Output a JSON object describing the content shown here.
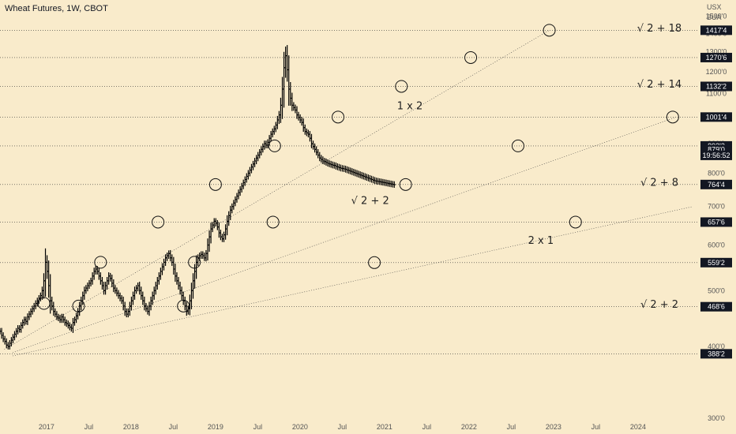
{
  "title": "Wheat Futures, 1W, CBOT",
  "currency": [
    "USX",
    "BUA"
  ],
  "countdown": "19:56:52",
  "chart_data": {
    "type": "line",
    "title": "Wheat Futures, 1W, CBOT",
    "xlabel": "",
    "ylabel": "",
    "xlim": [
      2016.45,
      2024.72
    ],
    "ylim": [
      300,
      1600
    ],
    "y_scale": "log",
    "y_ticks": [
      "300'0",
      "400'0",
      "500'0",
      "600'0",
      "700'0",
      "800'0",
      "900'0",
      "1000'0",
      "1100'0",
      "1200'0",
      "1300'0",
      "1400'0",
      "1500'0"
    ],
    "x_ticks": [
      {
        "t": 2017.0,
        "label": "2017"
      },
      {
        "t": 2017.5,
        "label": "Jul"
      },
      {
        "t": 2018.0,
        "label": "2018"
      },
      {
        "t": 2018.5,
        "label": "Jul"
      },
      {
        "t": 2019.0,
        "label": "2019"
      },
      {
        "t": 2019.5,
        "label": "Jul"
      },
      {
        "t": 2020.0,
        "label": "2020"
      },
      {
        "t": 2020.5,
        "label": "Jul"
      },
      {
        "t": 2021.0,
        "label": "2021"
      },
      {
        "t": 2021.5,
        "label": "Jul"
      },
      {
        "t": 2022.0,
        "label": "2022"
      },
      {
        "t": 2022.5,
        "label": "Jul"
      },
      {
        "t": 2023.0,
        "label": "2023"
      },
      {
        "t": 2023.5,
        "label": "Jul"
      },
      {
        "t": 2024.0,
        "label": "2024"
      }
    ],
    "levels": [
      {
        "value": 1417.5,
        "label": "1417'4"
      },
      {
        "value": 1270.75,
        "label": "1270'6"
      },
      {
        "value": 1132.25,
        "label": "1132'2"
      },
      {
        "value": 1001.5,
        "label": "1001'4"
      },
      {
        "value": 892.25,
        "label": "892'2"
      },
      {
        "value": 879,
        "label": "879'0"
      },
      {
        "value": 764.5,
        "label": "764'4"
      },
      {
        "value": 657.75,
        "label": "657'6"
      },
      {
        "value": 559.25,
        "label": "559'2"
      },
      {
        "value": 468.75,
        "label": "468'6"
      },
      {
        "value": 388.25,
        "label": "388'2"
      }
    ],
    "horizontal_lines": [
      1417.5,
      1270.75,
      1132.25,
      1001.5,
      892.25,
      764.5,
      657.75,
      559.25,
      468.75,
      388.25
    ],
    "trendlines": [
      {
        "name": "1 x 2",
        "from": [
          2016.5,
          395
        ],
        "to": [
          2022.95,
          1417.5
        ]
      },
      {
        "name": "√2 + 2 fan",
        "from": [
          2016.6,
          390
        ],
        "to": [
          2024.45,
          1001.5
        ]
      },
      {
        "name": "2 x 1",
        "from": [
          2016.6,
          385
        ],
        "to": [
          2024.65,
          700
        ]
      }
    ],
    "circles": [
      [
        2016.97,
        475
      ],
      [
        2017.64,
        560
      ],
      [
        2018.32,
        657.75
      ],
      [
        2019.0,
        764.5
      ],
      [
        2019.7,
        892.25
      ],
      [
        2020.45,
        1001.5
      ],
      [
        2021.2,
        1132.25
      ],
      [
        2022.02,
        1270.75
      ],
      [
        2022.95,
        1417.5
      ],
      [
        2017.38,
        470
      ],
      [
        2018.62,
        470
      ],
      [
        2019.68,
        657.75
      ],
      [
        2020.88,
        559.25
      ],
      [
        2021.25,
        764.5
      ],
      [
        2022.58,
        892.25
      ],
      [
        2024.41,
        1001.5
      ],
      [
        2018.75,
        560
      ],
      [
        2023.26,
        657.75
      ]
    ],
    "annotations": [
      {
        "text": "√ 2 + 18",
        "level": 1417.5
      },
      {
        "text": "√ 2 + 14",
        "level": 1132.25
      },
      {
        "text": "1 x 2",
        "t": 2021.3,
        "v": 1045
      },
      {
        "text": "√ 2 + 8",
        "level": 764.5
      },
      {
        "text": "√ 2 + 2",
        "t": 2020.83,
        "v": 715
      },
      {
        "text": "2 x 1",
        "t": 2022.85,
        "v": 610
      },
      {
        "text": "√ 2 + 2",
        "level": 468.75
      }
    ],
    "price_series": {
      "t_start": 2016.45,
      "t_step": 0.0192,
      "close": [
        425,
        418,
        412,
        408,
        402,
        400,
        405,
        410,
        415,
        420,
        425,
        430,
        428,
        435,
        440,
        445,
        442,
        450,
        455,
        460,
        465,
        470,
        475,
        480,
        485,
        490,
        500,
        520,
        560,
        540,
        510,
        480,
        470,
        460,
        455,
        450,
        448,
        445,
        450,
        445,
        440,
        438,
        435,
        432,
        430,
        440,
        445,
        452,
        460,
        470,
        480,
        490,
        500,
        505,
        510,
        515,
        520,
        530,
        540,
        545,
        540,
        530,
        520,
        510,
        500,
        510,
        520,
        530,
        525,
        515,
        505,
        500,
        495,
        490,
        485,
        480,
        470,
        460,
        455,
        460,
        470,
        480,
        490,
        500,
        505,
        510,
        500,
        490,
        480,
        470,
        465,
        460,
        470,
        480,
        490,
        500,
        510,
        520,
        530,
        540,
        550,
        560,
        570,
        575,
        580,
        570,
        560,
        545,
        530,
        520,
        510,
        500,
        490,
        480,
        470,
        460,
        465,
        480,
        500,
        520,
        540,
        560,
        570,
        575,
        578,
        575,
        570,
        580,
        600,
        620,
        640,
        650,
        660,
        655,
        645,
        630,
        620,
        615,
        625,
        640,
        660,
        675,
        690,
        700,
        710,
        720,
        730,
        740,
        750,
        760,
        770,
        780,
        790,
        800,
        810,
        820,
        830,
        840,
        850,
        860,
        870,
        880,
        890,
        900,
        895,
        905,
        920,
        935,
        945,
        955,
        970,
        990,
        1010,
        1050,
        1120,
        1220,
        1280,
        1210,
        1120,
        1080,
        1050,
        1040,
        1030,
        1010,
        1000,
        990,
        980,
        960,
        945,
        940,
        935,
        920,
        900,
        890,
        880,
        870,
        860,
        850,
        845,
        840,
        838,
        835,
        832,
        830,
        828,
        826,
        825,
        822,
        820,
        818,
        816,
        815,
        814,
        812,
        810,
        808,
        806,
        804,
        802,
        800,
        798,
        796,
        794,
        792,
        790,
        788,
        786,
        784,
        782,
        780,
        778,
        776,
        775,
        774,
        773,
        772,
        771,
        770,
        769,
        768,
        767,
        766,
        765,
        764
      ]
    }
  }
}
